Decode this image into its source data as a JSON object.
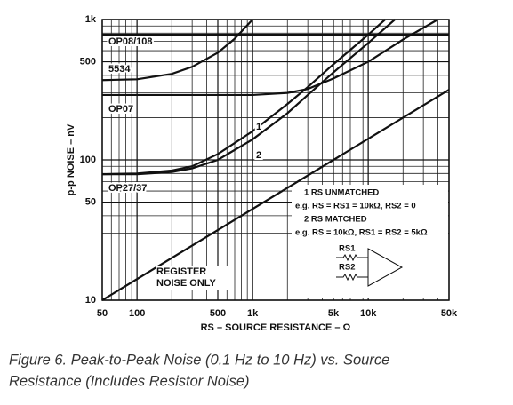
{
  "chart_data": {
    "type": "line",
    "log_x": true,
    "log_y": true,
    "grid": true,
    "xlabel": "RS – SOURCE RESISTANCE – Ω",
    "ylabel": "p-p NOISE – nV",
    "xlim": [
      50,
      50000
    ],
    "ylim": [
      10,
      1000
    ],
    "xticks": [
      50,
      100,
      500,
      {
        "value": 1000,
        "label": "1k"
      },
      {
        "value": 5000,
        "label": "5k"
      },
      {
        "value": 10000,
        "label": "10k"
      },
      {
        "value": 50000,
        "label": "50k"
      }
    ],
    "yticks": [
      10,
      50,
      100,
      500,
      {
        "value": 1000,
        "label": "1k"
      }
    ],
    "series": [
      {
        "name": "OP08/108",
        "color": "#111111",
        "x": [
          50,
          50000
        ],
        "values": [
          780,
          780
        ]
      },
      {
        "name": "5534",
        "color": "#111111",
        "x": [
          50,
          100,
          200,
          300,
          500,
          700,
          1000
        ],
        "values": [
          370,
          375,
          410,
          460,
          580,
          730,
          1000
        ]
      },
      {
        "name": "OP07",
        "color": "#111111",
        "x": [
          50,
          1000,
          2000,
          3000,
          5000,
          10000,
          20000,
          40000
        ],
        "values": [
          290,
          290,
          300,
          320,
          380,
          500,
          720,
          1000
        ]
      },
      {
        "name": "1",
        "color": "#111111",
        "x": [
          50,
          100,
          200,
          300,
          500,
          1000,
          2000,
          3000,
          5000,
          10000,
          14000
        ],
        "values": [
          79,
          80,
          84,
          90,
          110,
          160,
          250,
          330,
          480,
          780,
          1000
        ]
      },
      {
        "name": "2",
        "color": "#111111",
        "x": [
          50,
          100,
          200,
          300,
          500,
          1000,
          2000,
          3000,
          5000,
          10000,
          17000
        ],
        "values": [
          79,
          79,
          82,
          87,
          100,
          140,
          215,
          290,
          420,
          680,
          1000
        ]
      },
      {
        "name": "REGISTER NOISE ONLY",
        "color": "#111111",
        "x": [
          50,
          50000
        ],
        "values": [
          10,
          316
        ]
      }
    ],
    "annotations": [
      "OP27/37",
      "1 RS UNMATCHED",
      "e.g. RS = RS1 = 10kΩ, RS2 = 0",
      "2 RS MATCHED",
      "e.g. RS = 10kΩ, RS1 = RS2 = 5kΩ",
      "RS1",
      "RS2"
    ],
    "caption": [
      "Figure 6.  Peak-to-Peak Noise (0.1 Hz to 10 Hz) vs. Source",
      "Resistance (Includes Resistor Noise)"
    ]
  }
}
